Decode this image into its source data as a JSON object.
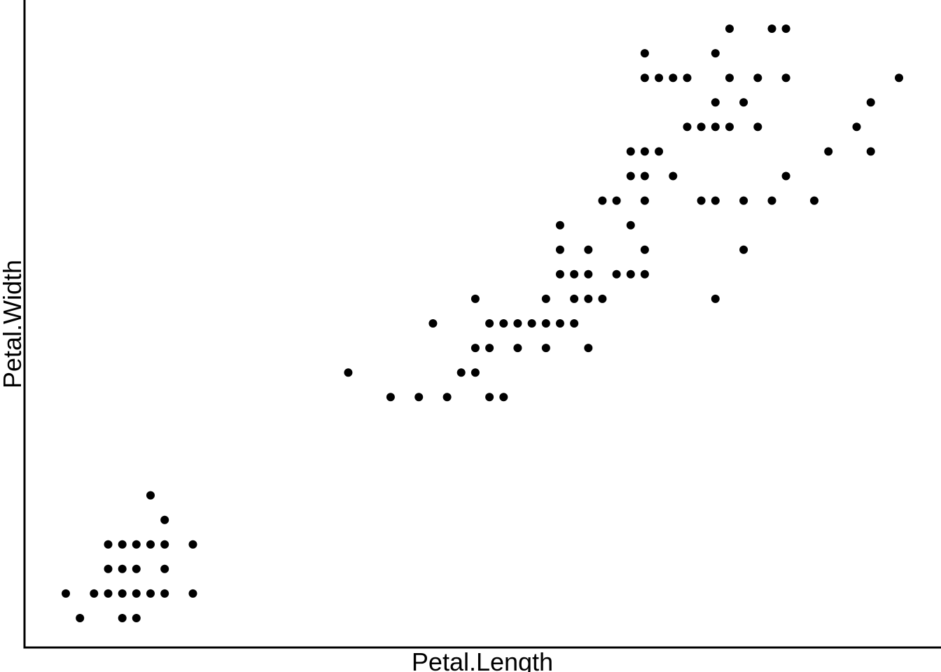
{
  "chart_data": {
    "type": "scatter",
    "xlabel": "Petal.Length",
    "ylabel": "Petal.Width",
    "xlim": [
      1.0,
      6.9
    ],
    "ylim": [
      0.1,
      2.5
    ],
    "grid": false,
    "legend": "none",
    "colors": {
      "point": "#000000",
      "axis": "#000000",
      "background": "#ffffff"
    },
    "series": [
      {
        "points": [
          [
            1.0,
            0.2
          ],
          [
            1.1,
            0.1
          ],
          [
            1.2,
            0.2
          ],
          [
            1.3,
            0.2
          ],
          [
            1.3,
            0.3
          ],
          [
            1.3,
            0.4
          ],
          [
            1.4,
            0.1
          ],
          [
            1.4,
            0.2
          ],
          [
            1.4,
            0.3
          ],
          [
            1.4,
            0.4
          ],
          [
            1.5,
            0.1
          ],
          [
            1.5,
            0.2
          ],
          [
            1.5,
            0.3
          ],
          [
            1.5,
            0.4
          ],
          [
            1.6,
            0.2
          ],
          [
            1.6,
            0.4
          ],
          [
            1.6,
            0.6
          ],
          [
            1.7,
            0.2
          ],
          [
            1.7,
            0.3
          ],
          [
            1.7,
            0.4
          ],
          [
            1.7,
            0.5
          ],
          [
            1.9,
            0.2
          ],
          [
            1.9,
            0.4
          ],
          [
            3.0,
            1.1
          ],
          [
            3.3,
            1.0
          ],
          [
            3.5,
            1.0
          ],
          [
            3.6,
            1.3
          ],
          [
            3.7,
            1.0
          ],
          [
            3.8,
            1.1
          ],
          [
            3.9,
            1.1
          ],
          [
            3.9,
            1.2
          ],
          [
            3.9,
            1.4
          ],
          [
            4.0,
            1.0
          ],
          [
            4.0,
            1.2
          ],
          [
            4.0,
            1.3
          ],
          [
            4.1,
            1.0
          ],
          [
            4.1,
            1.3
          ],
          [
            4.2,
            1.2
          ],
          [
            4.2,
            1.3
          ],
          [
            4.3,
            1.3
          ],
          [
            4.4,
            1.2
          ],
          [
            4.4,
            1.3
          ],
          [
            4.4,
            1.4
          ],
          [
            4.5,
            1.3
          ],
          [
            4.5,
            1.5
          ],
          [
            4.5,
            1.6
          ],
          [
            4.5,
            1.7
          ],
          [
            4.6,
            1.3
          ],
          [
            4.6,
            1.4
          ],
          [
            4.6,
            1.5
          ],
          [
            4.7,
            1.2
          ],
          [
            4.7,
            1.4
          ],
          [
            4.7,
            1.5
          ],
          [
            4.7,
            1.6
          ],
          [
            4.8,
            1.4
          ],
          [
            4.8,
            1.8
          ],
          [
            4.9,
            1.5
          ],
          [
            4.9,
            1.8
          ],
          [
            5.0,
            1.5
          ],
          [
            5.0,
            1.7
          ],
          [
            5.0,
            1.9
          ],
          [
            5.0,
            2.0
          ],
          [
            5.1,
            1.5
          ],
          [
            5.1,
            1.6
          ],
          [
            5.1,
            1.8
          ],
          [
            5.1,
            1.9
          ],
          [
            5.1,
            2.0
          ],
          [
            5.1,
            2.3
          ],
          [
            5.1,
            2.4
          ],
          [
            5.2,
            2.0
          ],
          [
            5.2,
            2.3
          ],
          [
            5.3,
            1.9
          ],
          [
            5.3,
            2.3
          ],
          [
            5.4,
            2.1
          ],
          [
            5.4,
            2.3
          ],
          [
            5.5,
            1.8
          ],
          [
            5.5,
            2.1
          ],
          [
            5.6,
            1.4
          ],
          [
            5.6,
            1.8
          ],
          [
            5.6,
            2.1
          ],
          [
            5.6,
            2.2
          ],
          [
            5.6,
            2.4
          ],
          [
            5.7,
            2.1
          ],
          [
            5.7,
            2.3
          ],
          [
            5.7,
            2.5
          ],
          [
            5.8,
            1.8
          ],
          [
            5.8,
            1.6
          ],
          [
            5.8,
            2.2
          ],
          [
            5.9,
            2.1
          ],
          [
            5.9,
            2.3
          ],
          [
            6.0,
            1.8
          ],
          [
            6.0,
            2.5
          ],
          [
            6.1,
            1.9
          ],
          [
            6.1,
            2.3
          ],
          [
            6.1,
            2.5
          ],
          [
            6.3,
            1.8
          ],
          [
            6.4,
            2.0
          ],
          [
            6.6,
            2.1
          ],
          [
            6.7,
            2.0
          ],
          [
            6.7,
            2.2
          ],
          [
            6.9,
            2.3
          ]
        ]
      }
    ]
  }
}
